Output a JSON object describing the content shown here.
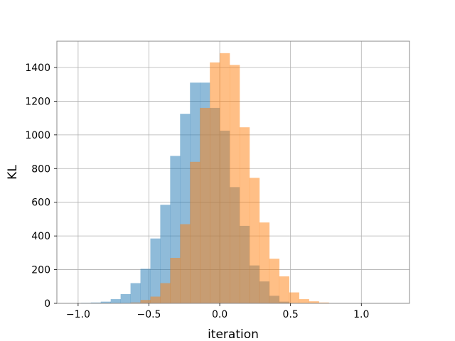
{
  "chart_data": {
    "type": "bar",
    "title": "",
    "xlabel": "iteration",
    "ylabel": "KL",
    "xlim": [
      -1.15,
      1.34
    ],
    "ylim": [
      0,
      1556
    ],
    "grid": true,
    "bin_width": 0.07,
    "xticks": [
      -1.0,
      -0.5,
      0.0,
      0.5,
      1.0
    ],
    "xtick_labels": [
      "−1.0",
      "−0.5",
      "0.0",
      "0.5",
      "1.0"
    ],
    "yticks": [
      0,
      200,
      400,
      600,
      800,
      1000,
      1200,
      1400
    ],
    "ytick_labels": [
      "0",
      "200",
      "400",
      "600",
      "800",
      "1000",
      "1200",
      "1400"
    ],
    "series": [
      {
        "color": "#1f77b4",
        "opacity": 0.5,
        "bin_starts": [
          -0.98,
          -0.91,
          -0.84,
          -0.77,
          -0.7,
          -0.63,
          -0.56,
          -0.49,
          -0.42,
          -0.35,
          -0.28,
          -0.21,
          -0.14,
          -0.07,
          0.0,
          0.07,
          0.14,
          0.21,
          0.28,
          0.35,
          0.42
        ],
        "values": [
          3,
          5,
          10,
          25,
          55,
          120,
          205,
          385,
          585,
          875,
          1125,
          1310,
          1310,
          1160,
          1025,
          690,
          460,
          225,
          130,
          45,
          10
        ]
      },
      {
        "color": "#ff7f0e",
        "opacity": 0.5,
        "bin_starts": [
          -0.63,
          -0.56,
          -0.49,
          -0.42,
          -0.35,
          -0.28,
          -0.21,
          -0.14,
          -0.07,
          0.0,
          0.07,
          0.14,
          0.21,
          0.28,
          0.35,
          0.42,
          0.49,
          0.56,
          0.63,
          0.7,
          0.77,
          0.84,
          0.91
        ],
        "values": [
          5,
          20,
          40,
          120,
          270,
          470,
          840,
          1160,
          1430,
          1485,
          1415,
          1045,
          745,
          480,
          265,
          160,
          65,
          25,
          12,
          5,
          2,
          1,
          1
        ]
      }
    ]
  }
}
